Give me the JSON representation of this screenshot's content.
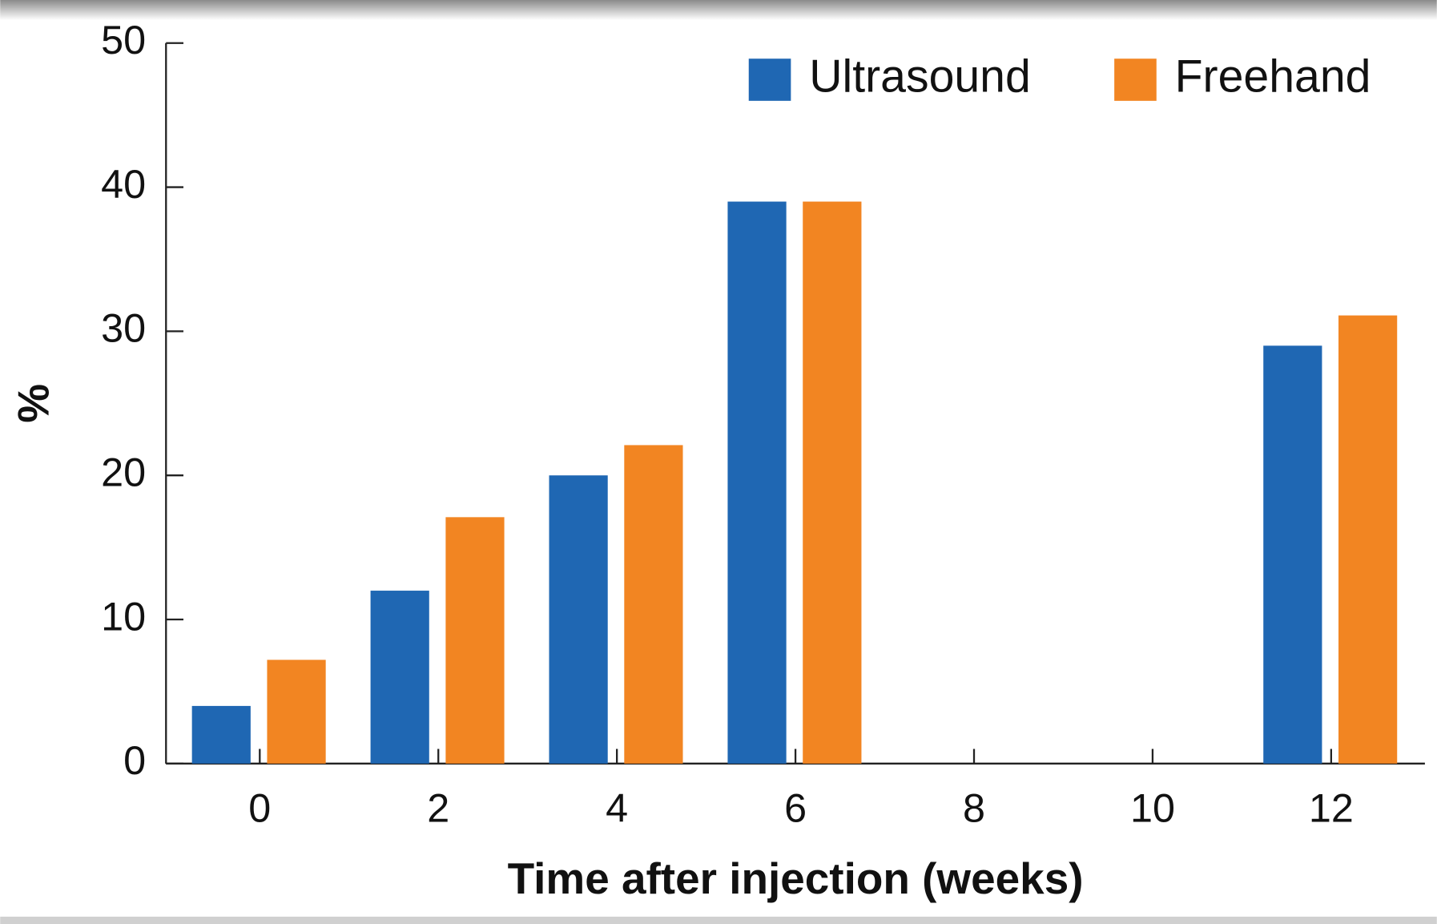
{
  "chart_data": {
    "type": "bar",
    "x_label": "Time after injection (weeks)",
    "y_label": "%",
    "x": [
      0,
      2,
      4,
      6,
      12
    ],
    "xlim": [
      -1.05,
      13.05
    ],
    "xticks": [
      0,
      2,
      4,
      6,
      8,
      10,
      12
    ],
    "ylim": [
      0,
      50
    ],
    "yticks": [
      0,
      10,
      20,
      30,
      40,
      50
    ],
    "legend": "upper right",
    "series": [
      {
        "name": "Ultrasound",
        "color": "#1f67b3",
        "values": [
          4,
          12,
          20,
          39,
          29
        ]
      },
      {
        "name": "Freehand",
        "color": "#f28522",
        "values": [
          7.2,
          17.1,
          22.1,
          39,
          31.1
        ]
      }
    ]
  }
}
